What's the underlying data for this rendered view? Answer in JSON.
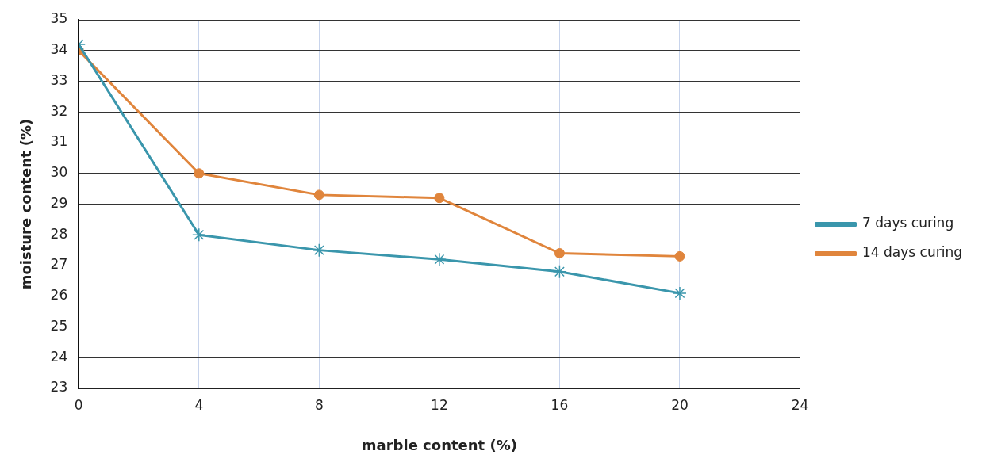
{
  "chart_data": {
    "type": "line",
    "xlabel": "marble content (%)",
    "ylabel": "moisture content (%)",
    "x": [
      0,
      4,
      8,
      12,
      16,
      20
    ],
    "series": [
      {
        "name": "7 days curing",
        "color": "#3a96ac",
        "marker": "cross",
        "values": [
          34.2,
          28.0,
          27.5,
          27.2,
          26.8,
          26.1
        ]
      },
      {
        "name": "14 days curing",
        "color": "#e0853c",
        "marker": "circle",
        "values": [
          34.0,
          30.0,
          29.3,
          29.2,
          27.4,
          27.3
        ]
      }
    ],
    "xlim": [
      0,
      24
    ],
    "xticks": [
      0,
      4,
      8,
      12,
      16,
      20,
      24
    ],
    "ylim": [
      23,
      35
    ],
    "yticks": [
      23,
      24,
      25,
      26,
      27,
      28,
      29,
      30,
      31,
      32,
      33,
      34,
      35
    ],
    "grid": true,
    "legend": "right",
    "line_style": "solid"
  }
}
